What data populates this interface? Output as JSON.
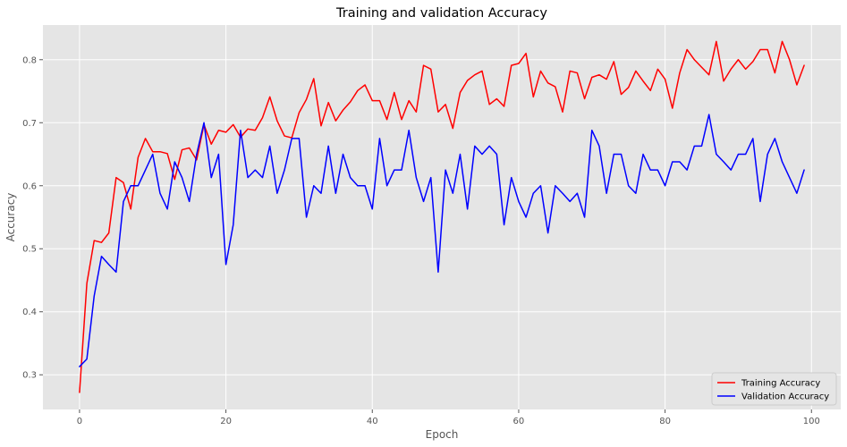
{
  "chart_data": {
    "type": "line",
    "title": "Training and validation Accuracy",
    "xlabel": "Epoch",
    "ylabel": "Accuracy",
    "xlim": [
      -5,
      104
    ],
    "ylim": [
      0.245,
      0.855
    ],
    "xticks": [
      0,
      20,
      40,
      60,
      80,
      100
    ],
    "yticks": [
      0.3,
      0.4,
      0.5,
      0.6,
      0.7,
      0.8
    ],
    "grid": true,
    "legend_position": "bottom-right",
    "background_color": "#e5e5e5",
    "grid_color": "#ffffff",
    "series": [
      {
        "name": "Training Accuracy",
        "color": "#ff0000",
        "x": [
          0,
          1,
          2,
          3,
          4,
          5,
          6,
          7,
          8,
          9,
          10,
          11,
          12,
          13,
          14,
          15,
          16,
          17,
          18,
          19,
          20,
          21,
          22,
          23,
          24,
          25,
          26,
          27,
          28,
          29,
          30,
          31,
          32,
          33,
          34,
          35,
          36,
          37,
          38,
          39,
          40,
          41,
          42,
          43,
          44,
          45,
          46,
          47,
          48,
          49,
          50,
          51,
          52,
          53,
          54,
          55,
          56,
          57,
          58,
          59,
          60,
          61,
          62,
          63,
          64,
          65,
          66,
          67,
          68,
          69,
          70,
          71,
          72,
          73,
          74,
          75,
          76,
          77,
          78,
          79,
          80,
          81,
          82,
          83,
          84,
          85,
          86,
          87,
          88,
          89,
          90,
          91,
          92,
          93,
          94,
          95,
          96,
          97,
          98,
          99
        ],
        "values": [
          0.272,
          0.445,
          0.513,
          0.51,
          0.525,
          0.613,
          0.605,
          0.563,
          0.645,
          0.675,
          0.654,
          0.654,
          0.651,
          0.61,
          0.657,
          0.66,
          0.641,
          0.697,
          0.666,
          0.688,
          0.685,
          0.697,
          0.677,
          0.69,
          0.688,
          0.708,
          0.741,
          0.703,
          0.679,
          0.676,
          0.716,
          0.737,
          0.77,
          0.695,
          0.732,
          0.703,
          0.72,
          0.733,
          0.751,
          0.76,
          0.735,
          0.735,
          0.705,
          0.748,
          0.705,
          0.735,
          0.717,
          0.791,
          0.785,
          0.717,
          0.729,
          0.691,
          0.748,
          0.767,
          0.776,
          0.782,
          0.729,
          0.738,
          0.726,
          0.791,
          0.794,
          0.81,
          0.741,
          0.782,
          0.763,
          0.757,
          0.717,
          0.782,
          0.779,
          0.738,
          0.772,
          0.776,
          0.769,
          0.797,
          0.745,
          0.756,
          0.782,
          0.766,
          0.751,
          0.785,
          0.769,
          0.723,
          0.779,
          0.816,
          0.8,
          0.788,
          0.776,
          0.829,
          0.766,
          0.785,
          0.8,
          0.785,
          0.797,
          0.816,
          0.816,
          0.779,
          0.829,
          0.8,
          0.76,
          0.791
        ]
      },
      {
        "name": "Validation Accuracy",
        "color": "#0000ff",
        "x": [
          0,
          1,
          2,
          3,
          4,
          5,
          6,
          7,
          8,
          9,
          10,
          11,
          12,
          13,
          14,
          15,
          16,
          17,
          18,
          19,
          20,
          21,
          22,
          23,
          24,
          25,
          26,
          27,
          28,
          29,
          30,
          31,
          32,
          33,
          34,
          35,
          36,
          37,
          38,
          39,
          40,
          41,
          42,
          43,
          44,
          45,
          46,
          47,
          48,
          49,
          50,
          51,
          52,
          53,
          54,
          55,
          56,
          57,
          58,
          59,
          60,
          61,
          62,
          63,
          64,
          65,
          66,
          67,
          68,
          69,
          70,
          71,
          72,
          73,
          74,
          75,
          76,
          77,
          78,
          79,
          80,
          81,
          82,
          83,
          84,
          85,
          86,
          87,
          88,
          89,
          90,
          91,
          92,
          93,
          94,
          95,
          96,
          97,
          98,
          99
        ],
        "values": [
          0.313,
          0.325,
          0.425,
          0.488,
          0.475,
          0.463,
          0.575,
          0.6,
          0.6,
          0.625,
          0.65,
          0.588,
          0.563,
          0.638,
          0.613,
          0.575,
          0.65,
          0.7,
          0.613,
          0.65,
          0.475,
          0.538,
          0.688,
          0.613,
          0.625,
          0.613,
          0.663,
          0.588,
          0.625,
          0.675,
          0.675,
          0.55,
          0.6,
          0.588,
          0.663,
          0.588,
          0.65,
          0.613,
          0.6,
          0.6,
          0.563,
          0.675,
          0.6,
          0.625,
          0.625,
          0.688,
          0.613,
          0.575,
          0.613,
          0.463,
          0.625,
          0.588,
          0.65,
          0.563,
          0.663,
          0.65,
          0.663,
          0.65,
          0.538,
          0.613,
          0.575,
          0.55,
          0.588,
          0.6,
          0.525,
          0.6,
          0.588,
          0.575,
          0.588,
          0.55,
          0.688,
          0.663,
          0.588,
          0.65,
          0.65,
          0.6,
          0.588,
          0.65,
          0.625,
          0.625,
          0.6,
          0.638,
          0.638,
          0.625,
          0.663,
          0.663,
          0.713,
          0.65,
          0.638,
          0.625,
          0.65,
          0.65,
          0.675,
          0.575,
          0.65,
          0.675,
          0.638,
          0.613,
          0.588,
          0.625
        ]
      }
    ]
  }
}
